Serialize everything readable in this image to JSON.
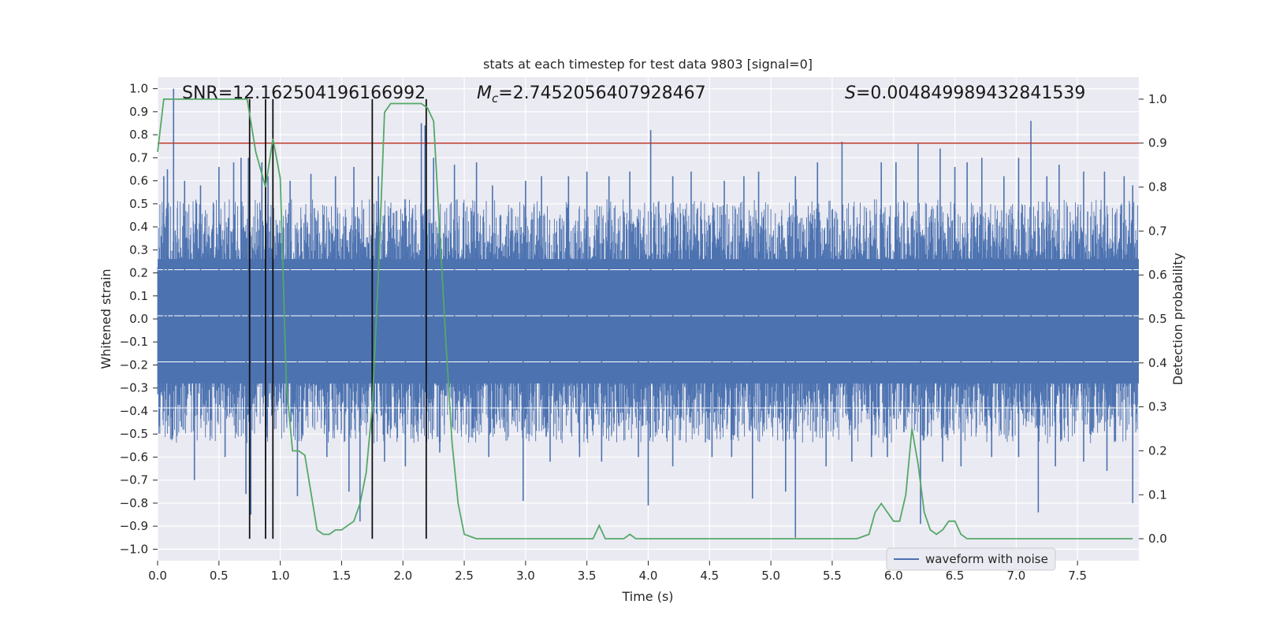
{
  "chart_data": {
    "type": "line",
    "title": "stats at each timestep for test data 9803 [signal=0]",
    "xlabel": "Time (s)",
    "ylabel": "Whitened strain",
    "y2label": "Detection probability",
    "xlim": [
      0.0,
      8.0
    ],
    "ylim": [
      -1.05,
      1.05
    ],
    "y2lim": [
      -0.05,
      1.05
    ],
    "xticks": [
      0.0,
      0.5,
      1.0,
      1.5,
      2.0,
      2.5,
      3.0,
      3.5,
      4.0,
      4.5,
      5.0,
      5.5,
      6.0,
      6.5,
      7.0,
      7.5
    ],
    "xtick_labels": [
      "0.0",
      "0.5",
      "1.0",
      "1.5",
      "2.0",
      "2.5",
      "3.0",
      "3.5",
      "4.0",
      "4.5",
      "5.0",
      "5.5",
      "6.0",
      "6.5",
      "7.0",
      "7.5"
    ],
    "yticks": [
      1.0,
      0.9,
      0.8,
      0.7,
      0.6,
      0.5,
      0.4,
      0.3,
      0.2,
      0.1,
      0.0,
      -0.1,
      -0.2,
      -0.3,
      -0.4,
      -0.5,
      -0.6,
      -0.7,
      -0.8,
      -0.9,
      -1.0
    ],
    "ytick_labels": [
      "1.0",
      "0.9",
      "0.8",
      "0.7",
      "0.6",
      "0.5",
      "0.4",
      "0.3",
      "0.2",
      "0.1",
      "0.0",
      "−0.1",
      "−0.2",
      "−0.3",
      "−0.4",
      "−0.5",
      "−0.6",
      "−0.7",
      "−0.8",
      "−0.9",
      "−1.0"
    ],
    "y2ticks": [
      1.0,
      0.9,
      0.8,
      0.7,
      0.6,
      0.5,
      0.4,
      0.3,
      0.2,
      0.1,
      0.0
    ],
    "y2tick_labels": [
      "1.0",
      "0.9",
      "0.8",
      "0.7",
      "0.6",
      "0.5",
      "0.4",
      "0.3",
      "0.2",
      "0.1",
      "0.0"
    ],
    "annotations": {
      "snr": "SNR=12.162504196166992",
      "mc_symbol": "M",
      "mc_sub": "c",
      "mc_value": "=2.7452056407928467",
      "s_symbol": "S",
      "s_value": "=0.004849989432841539"
    },
    "legend": {
      "label": "waveform with noise",
      "location": "lower right"
    },
    "threshold": {
      "value": 0.9,
      "axis": "y2",
      "color": "#c0392b"
    },
    "vlines": [
      0.75,
      0.88,
      0.94,
      1.75,
      2.19
    ],
    "spikes_up": [
      [
        0.13,
        1.0
      ],
      [
        0.05,
        0.62
      ],
      [
        0.08,
        0.65
      ],
      [
        0.22,
        0.6
      ],
      [
        0.35,
        0.58
      ],
      [
        0.5,
        0.66
      ],
      [
        0.62,
        0.68
      ],
      [
        0.68,
        0.7
      ],
      [
        0.74,
        0.7
      ],
      [
        0.85,
        0.68
      ],
      [
        0.9,
        0.62
      ],
      [
        1.08,
        0.6
      ],
      [
        1.25,
        0.63
      ],
      [
        1.45,
        0.62
      ],
      [
        1.6,
        0.66
      ],
      [
        1.8,
        0.62
      ],
      [
        2.15,
        0.85
      ],
      [
        2.18,
        0.84
      ],
      [
        2.25,
        0.7
      ],
      [
        2.42,
        0.67
      ],
      [
        2.6,
        0.68
      ],
      [
        2.73,
        0.58
      ],
      [
        3.0,
        0.6
      ],
      [
        3.13,
        0.62
      ],
      [
        3.35,
        0.62
      ],
      [
        3.5,
        0.64
      ],
      [
        3.68,
        0.62
      ],
      [
        3.85,
        0.64
      ],
      [
        4.02,
        0.82
      ],
      [
        4.2,
        0.62
      ],
      [
        4.35,
        0.64
      ],
      [
        4.62,
        0.6
      ],
      [
        4.78,
        0.62
      ],
      [
        4.9,
        0.64
      ],
      [
        5.2,
        0.62
      ],
      [
        5.38,
        0.68
      ],
      [
        5.58,
        0.77
      ],
      [
        5.9,
        0.68
      ],
      [
        6.02,
        0.68
      ],
      [
        6.2,
        0.76
      ],
      [
        6.38,
        0.74
      ],
      [
        6.5,
        0.66
      ],
      [
        6.6,
        0.68
      ],
      [
        6.72,
        0.7
      ],
      [
        6.9,
        0.62
      ],
      [
        7.02,
        0.7
      ],
      [
        7.12,
        0.86
      ],
      [
        7.25,
        0.62
      ],
      [
        7.35,
        0.67
      ],
      [
        7.55,
        0.64
      ],
      [
        7.72,
        0.64
      ],
      [
        7.88,
        0.62
      ],
      [
        7.95,
        0.58
      ]
    ],
    "spikes_down": [
      [
        0.3,
        -0.7
      ],
      [
        0.55,
        -0.6
      ],
      [
        0.72,
        -0.76
      ],
      [
        0.76,
        -0.85
      ],
      [
        0.88,
        -0.62
      ],
      [
        1.14,
        -0.77
      ],
      [
        1.38,
        -0.6
      ],
      [
        1.56,
        -0.75
      ],
      [
        1.65,
        -0.88
      ],
      [
        1.85,
        -0.62
      ],
      [
        2.02,
        -0.64
      ],
      [
        2.3,
        -0.58
      ],
      [
        2.7,
        -0.6
      ],
      [
        2.98,
        -0.79
      ],
      [
        3.2,
        -0.62
      ],
      [
        3.44,
        -0.6
      ],
      [
        3.62,
        -0.62
      ],
      [
        3.92,
        -0.6
      ],
      [
        4.0,
        -0.81
      ],
      [
        4.2,
        -0.64
      ],
      [
        4.52,
        -0.6
      ],
      [
        4.68,
        -0.6
      ],
      [
        4.85,
        -0.78
      ],
      [
        5.12,
        -0.75
      ],
      [
        5.2,
        -0.95
      ],
      [
        5.45,
        -0.64
      ],
      [
        5.66,
        -0.62
      ],
      [
        5.82,
        -0.6
      ],
      [
        5.95,
        -0.6
      ],
      [
        6.22,
        -0.89
      ],
      [
        6.4,
        -0.62
      ],
      [
        6.55,
        -0.64
      ],
      [
        6.8,
        -0.6
      ],
      [
        7.02,
        -0.6
      ],
      [
        7.18,
        -0.84
      ],
      [
        7.32,
        -0.64
      ],
      [
        7.55,
        -0.62
      ],
      [
        7.74,
        -0.66
      ],
      [
        7.95,
        -0.8
      ]
    ],
    "series": [
      {
        "name": "detection probability",
        "axis": "y2",
        "color": "#55a868",
        "x": [
          0.0,
          0.05,
          0.1,
          0.2,
          0.3,
          0.4,
          0.5,
          0.6,
          0.7,
          0.73,
          0.8,
          0.88,
          0.94,
          1.0,
          1.05,
          1.1,
          1.15,
          1.2,
          1.3,
          1.35,
          1.4,
          1.45,
          1.5,
          1.55,
          1.6,
          1.65,
          1.7,
          1.75,
          1.8,
          1.85,
          1.9,
          1.95,
          2.0,
          2.05,
          2.1,
          2.15,
          2.2,
          2.25,
          2.3,
          2.35,
          2.4,
          2.45,
          2.5,
          2.6,
          2.8,
          3.0,
          3.2,
          3.3,
          3.4,
          3.5,
          3.55,
          3.6,
          3.65,
          3.7,
          3.8,
          3.85,
          3.9,
          4.0,
          4.2,
          4.5,
          5.0,
          5.5,
          5.7,
          5.8,
          5.85,
          5.9,
          5.95,
          6.0,
          6.05,
          6.1,
          6.15,
          6.2,
          6.25,
          6.3,
          6.35,
          6.4,
          6.45,
          6.5,
          6.55,
          6.6,
          6.7,
          6.8,
          7.0,
          7.2,
          7.5,
          7.95
        ],
        "y": [
          0.88,
          1.0,
          1.0,
          1.0,
          1.0,
          1.0,
          1.0,
          1.0,
          1.0,
          1.0,
          0.88,
          0.8,
          0.91,
          0.82,
          0.35,
          0.2,
          0.2,
          0.19,
          0.02,
          0.01,
          0.01,
          0.02,
          0.02,
          0.03,
          0.04,
          0.08,
          0.15,
          0.3,
          0.6,
          0.97,
          0.99,
          0.99,
          0.99,
          0.99,
          0.99,
          0.99,
          0.98,
          0.95,
          0.7,
          0.45,
          0.22,
          0.08,
          0.01,
          0.0,
          0.0,
          0.0,
          0.0,
          0.0,
          0.0,
          0.0,
          0.0,
          0.03,
          0.0,
          0.0,
          0.0,
          0.01,
          0.0,
          0.0,
          0.0,
          0.0,
          0.0,
          0.0,
          0.0,
          0.01,
          0.06,
          0.08,
          0.06,
          0.04,
          0.04,
          0.1,
          0.25,
          0.17,
          0.06,
          0.02,
          0.01,
          0.02,
          0.04,
          0.04,
          0.01,
          0.0,
          0.0,
          0.0,
          0.0,
          0.0,
          0.0,
          0.0
        ]
      }
    ]
  }
}
